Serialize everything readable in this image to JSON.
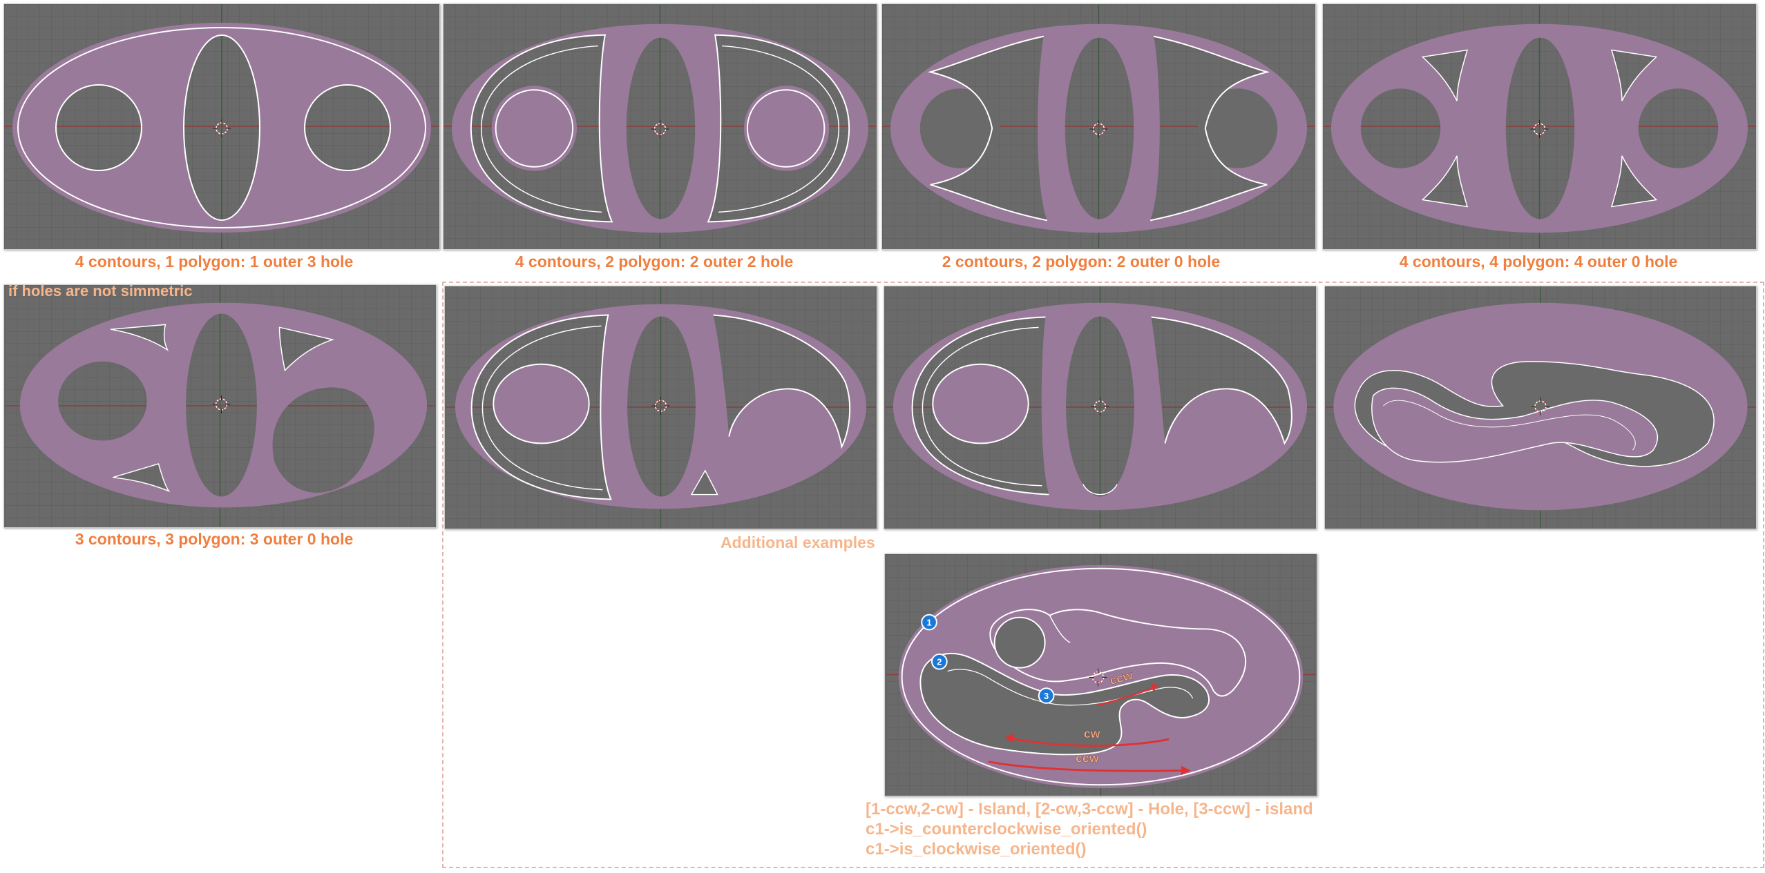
{
  "captions": [
    "4 contours, 1 polygon: 1 outer 3 hole",
    "4 contours, 2 polygon: 2 outer 2 hole",
    "2 contours, 2 polygon: 2 outer 0 hole",
    "4 contours, 4 polygon: 4 outer 0 hole",
    "3 contours, 3 polygon: 3 outer 0 hole"
  ],
  "note": "if holes are not simmetric",
  "additional_label": "Additional examples",
  "markers": [
    "1",
    "2",
    "3"
  ],
  "directions": {
    "ccw_inner": "ccw",
    "cw": "cw",
    "ccw_outer": "ccw"
  },
  "bottom_lines": [
    "[1-ccw,2-cw] - Island, [2-cw,3-ccw] - Hole, [3-ccw] - island",
    "c1->is_counterclockwise_oriented()",
    "c1->is_clockwise_oriented()"
  ],
  "colors": {
    "background": "#6a6a6a",
    "fill": "#9a7a9a",
    "outline": "#ffffff",
    "caption": "#f07e3e",
    "note": "#f6b58b",
    "marker": "#1b78d8",
    "axis_x": "#8b3c3c",
    "axis_y": "#3e5a3e"
  }
}
